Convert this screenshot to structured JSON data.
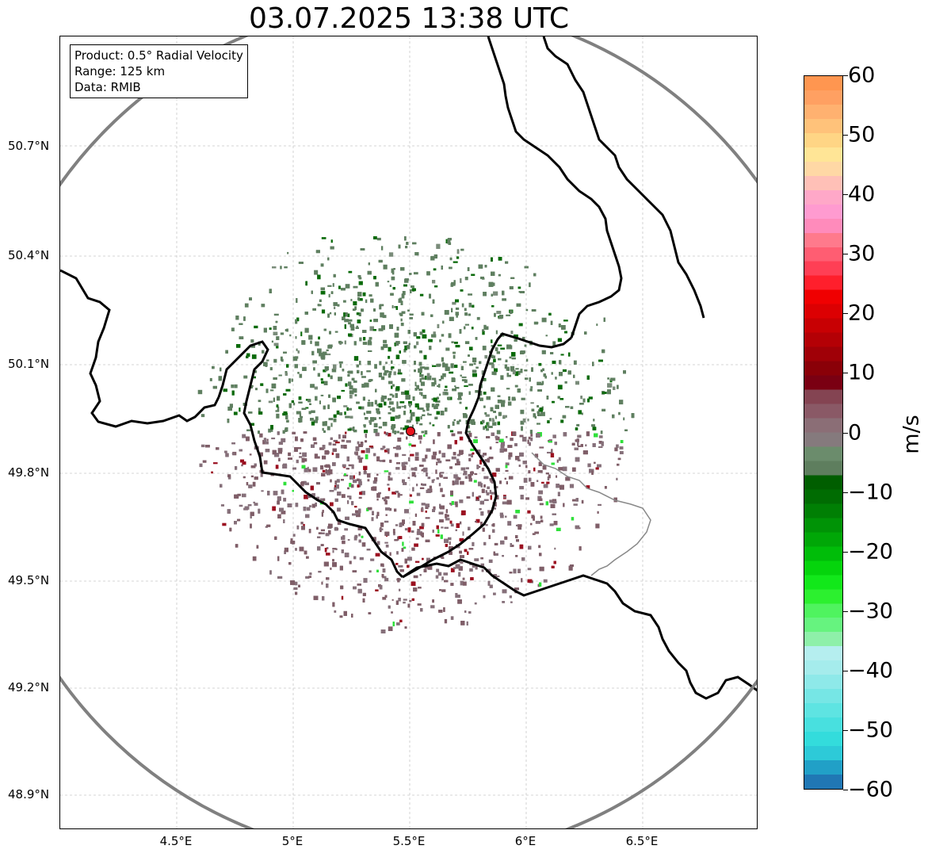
{
  "title": "03.07.2025 13:38 UTC",
  "info": {
    "product": "Product: 0.5° Radial Velocity",
    "range": "Range: 125 km",
    "data": "Data: RMIB"
  },
  "lat_labels": [
    "50.7°N",
    "50.4°N",
    "50.1°N",
    "49.8°N",
    "49.5°N",
    "49.2°N",
    "48.9°N"
  ],
  "lon_labels": [
    "4.5°E",
    "5°E",
    "5.5°E",
    "6°E",
    "6.5°E"
  ],
  "colorbar": {
    "unit": "m/s",
    "min": -60,
    "max": 60,
    "ticks": [
      "60",
      "50",
      "40",
      "30",
      "20",
      "10",
      "0",
      "−10",
      "−20",
      "−30",
      "−40",
      "−50",
      "−60"
    ],
    "colors": [
      "#2077b4",
      "#21a0c7",
      "#2dcad8",
      "#33dcdc",
      "#48e0df",
      "#5ee4e2",
      "#76e6e5",
      "#8ee9e9",
      "#a5ecec",
      "#b5eeef",
      "#8ef0a9",
      "#66f37f",
      "#4ff35f",
      "#2cf02f",
      "#12e81a",
      "#05d40c",
      "#00bd09",
      "#00a707",
      "#009306",
      "#007f04",
      "#006c02",
      "#005e00",
      "#5e7e5e",
      "#6b8c6c",
      "#857a7d",
      "#8b6e76",
      "#8a5966",
      "#844452",
      "#7a0012",
      "#8a0008",
      "#a00007",
      "#b40005",
      "#c80003",
      "#dc0002",
      "#f00001",
      "#ff1f2c",
      "#ff3f55",
      "#ff5d72",
      "#ff7a8c",
      "#ff8bbb",
      "#ff9bd0",
      "#ffa8c8",
      "#ffc0b7",
      "#ffd8a5",
      "#ffe596",
      "#ffd585",
      "#ffc27a",
      "#ffb170",
      "#ffa062",
      "#ff9650"
    ]
  },
  "radar_site": {
    "lat": 49.914,
    "lon": 5.505
  }
}
